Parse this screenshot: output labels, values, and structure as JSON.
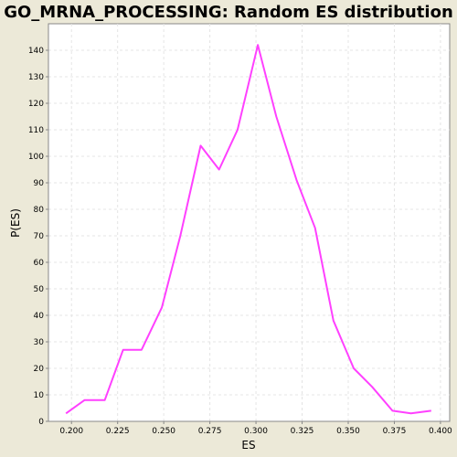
{
  "chart_data": {
    "type": "line",
    "title": "GO_MRNA_PROCESSING: Random ES distribution",
    "xlabel": "ES",
    "ylabel": "P(ES)",
    "xlim": [
      0.1875,
      0.405
    ],
    "ylim": [
      0,
      150
    ],
    "x_ticks": [
      0.2,
      0.225,
      0.25,
      0.275,
      0.3,
      0.325,
      0.35,
      0.375,
      0.4
    ],
    "x_tick_labels": [
      "0.200",
      "0.225",
      "0.250",
      "0.275",
      "0.300",
      "0.325",
      "0.350",
      "0.375",
      "0.400"
    ],
    "y_ticks": [
      0,
      10,
      20,
      30,
      40,
      50,
      60,
      70,
      80,
      90,
      100,
      110,
      120,
      130,
      140
    ],
    "y_tick_labels": [
      "0",
      "10",
      "20",
      "30",
      "40",
      "50",
      "60",
      "70",
      "80",
      "90",
      "100",
      "110",
      "120",
      "130",
      "140"
    ],
    "grid": true,
    "series": [
      {
        "color": "#ff40ff",
        "x": [
          0.197,
          0.207,
          0.218,
          0.228,
          0.238,
          0.249,
          0.259,
          0.27,
          0.28,
          0.29,
          0.301,
          0.311,
          0.322,
          0.332,
          0.342,
          0.353,
          0.363,
          0.374,
          0.384,
          0.395
        ],
        "y": [
          3,
          8,
          8,
          27,
          27,
          43,
          70,
          104,
          95,
          110,
          142,
          115,
          91,
          73,
          38,
          20,
          13,
          4,
          3,
          4
        ]
      }
    ]
  }
}
